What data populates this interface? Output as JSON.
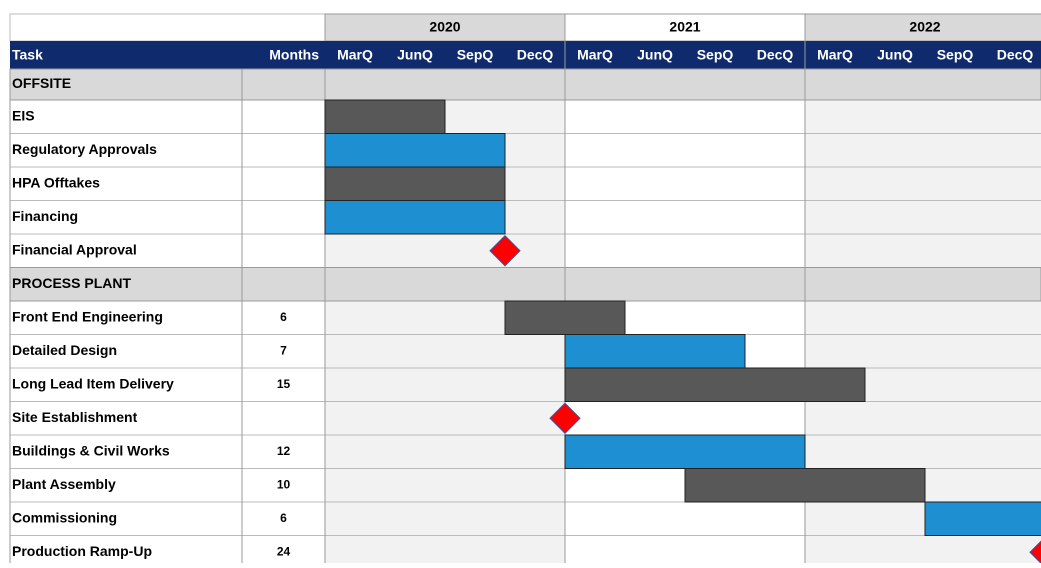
{
  "chart_data": {
    "type": "gantt",
    "columns": [
      "Task",
      "Months"
    ],
    "periods": [
      {
        "year": "2020",
        "quarters": [
          "MarQ",
          "JunQ",
          "SepQ",
          "DecQ"
        ]
      },
      {
        "year": "2021",
        "quarters": [
          "MarQ",
          "JunQ",
          "SepQ",
          "DecQ"
        ]
      },
      {
        "year": "2022",
        "quarters": [
          "MarQ",
          "JunQ",
          "SepQ",
          "DecQ"
        ]
      }
    ],
    "xlim": [
      0,
      12
    ],
    "groups": [
      {
        "name": "OFFSITE",
        "tasks": [
          {
            "name": "EIS",
            "start": 0,
            "end": 2,
            "color": "#585858"
          },
          {
            "name": "Regulatory Approvals",
            "start": 0,
            "end": 3,
            "color": "#1e8fd0"
          },
          {
            "name": "HPA Offtakes",
            "start": 0,
            "end": 3,
            "color": "#585858"
          },
          {
            "name": "Financing",
            "start": 0,
            "end": 3,
            "color": "#1e8fd0"
          },
          {
            "name": "Financial Approval",
            "milestone": 3,
            "color": "#ff0000"
          }
        ]
      },
      {
        "name": "PROCESS PLANT",
        "tasks": [
          {
            "name": "Front End Engineering",
            "months": 6,
            "start": 3,
            "end": 5,
            "color": "#585858"
          },
          {
            "name": "Detailed Design",
            "months": 7,
            "start": 4,
            "end": 7,
            "color": "#1e8fd0"
          },
          {
            "name": "Long Lead Item Delivery",
            "months": 15,
            "start": 4,
            "end": 9,
            "color": "#585858"
          },
          {
            "name": "Site Establishment",
            "milestone": 4,
            "color": "#ff0000"
          },
          {
            "name": "Buildings & Civil Works",
            "months": 12,
            "start": 4,
            "end": 8,
            "color": "#1e8fd0"
          },
          {
            "name": "Plant Assembly",
            "months": 10,
            "start": 6,
            "end": 10,
            "color": "#585858"
          },
          {
            "name": "Commissioning",
            "months": 6,
            "start": 10,
            "end": 12,
            "color": "#1e8fd0"
          },
          {
            "name": "Production Ramp-Up",
            "months": 24,
            "milestone": 12,
            "color": "#ff0000"
          }
        ]
      }
    ]
  }
}
